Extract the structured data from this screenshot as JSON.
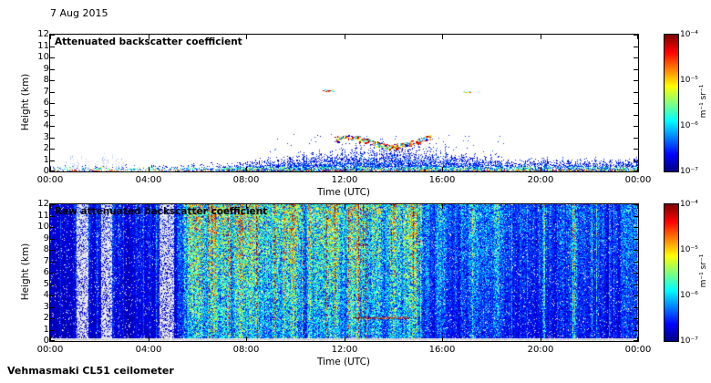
{
  "page": {
    "date_label": "7 Aug 2015",
    "footer_label": "Vehmasmaki CL51 ceilometer",
    "background_color": "#ffffff",
    "axis_color": "#000000"
  },
  "chart_data": [
    {
      "type": "heatmap",
      "panel": "top",
      "title": "Attenuated backscatter coefficient",
      "xlabel": "Time (UTC)",
      "ylabel": "Height (km)",
      "x_range_hours": [
        0,
        24
      ],
      "x_tick_hours": [
        0,
        4,
        8,
        12,
        16,
        20,
        24
      ],
      "x_tick_labels": [
        "00:00",
        "04:00",
        "08:00",
        "12:00",
        "16:00",
        "20:00",
        "00:00"
      ],
      "y_range_km": [
        0,
        12
      ],
      "y_tick_labels": [
        "0",
        "1",
        "2",
        "3",
        "4",
        "5",
        "6",
        "7",
        "8",
        "9",
        "10",
        "11",
        "12"
      ],
      "grid": false,
      "colorbar": {
        "colormap": "jet",
        "scale": "log",
        "value_range": [
          1e-07,
          0.0001
        ],
        "tick_labels": [
          "10⁻⁴",
          "10⁻⁵",
          "10⁻⁶",
          "10⁻⁷"
        ],
        "unit_label": "m⁻¹ sr⁻¹"
      },
      "features": {
        "seed": 20150807,
        "background_color": "#ffffff",
        "boundary_layer": {
          "night_top_km": 0.45,
          "day_peak_top_km": 2.1,
          "peak_hour": 13.8,
          "width_hours": 4.6,
          "evening_top_km": 1.0
        },
        "virga_columns_hours": [
          0.6,
          3.1
        ],
        "mid_cloud": {
          "hours": [
            11.6,
            15.5
          ],
          "height_km": [
            2.2,
            3.0
          ]
        },
        "high_clouds": [
          {
            "hour": 11.35,
            "half_width_hours": 0.22,
            "height_km": 7.1
          },
          {
            "hour": 17.0,
            "half_width_hours": 0.15,
            "height_km": 7.0
          }
        ]
      }
    },
    {
      "type": "heatmap",
      "panel": "bottom",
      "title": "Raw attenuated backscatter coefficient",
      "xlabel": "Time (UTC)",
      "ylabel": "Height (km)",
      "x_range_hours": [
        0,
        24
      ],
      "x_tick_hours": [
        0,
        4,
        8,
        12,
        16,
        20,
        24
      ],
      "x_tick_labels": [
        "00:00",
        "04:00",
        "08:00",
        "12:00",
        "16:00",
        "20:00",
        "00:00"
      ],
      "y_range_km": [
        0,
        12
      ],
      "y_tick_labels": [
        "0",
        "1",
        "2",
        "3",
        "4",
        "5",
        "6",
        "7",
        "8",
        "9",
        "10",
        "11",
        "12"
      ],
      "grid": false,
      "colorbar": {
        "colormap": "jet",
        "scale": "log",
        "value_range": [
          1e-07,
          0.0001
        ],
        "tick_labels": [
          "10⁻⁴",
          "10⁻⁵",
          "10⁻⁶",
          "10⁻⁷"
        ],
        "unit_label": "m⁻¹ sr⁻¹"
      },
      "features": {
        "seed": 8072015,
        "daytime_intense_hours": [
          6.0,
          14.9
        ],
        "pale_columns_hours": [
          [
            1.05,
            1.55
          ],
          [
            2.05,
            2.5
          ],
          [
            4.45,
            5.05
          ]
        ],
        "cloud_line": {
          "hours": [
            12.35,
            14.65
          ],
          "height_km": 2.05
        },
        "ground_band_km": 0.3
      }
    }
  ]
}
